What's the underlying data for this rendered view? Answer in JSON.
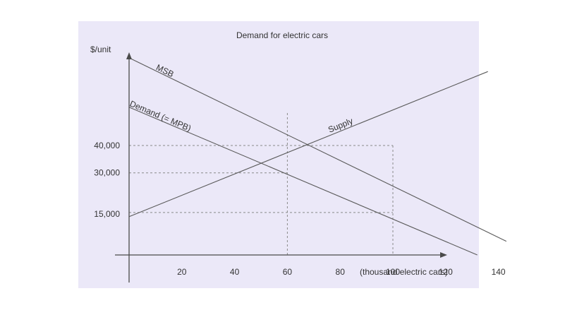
{
  "colors": {
    "panel_bg": "#ebe8f8",
    "line": "#5a5a5a",
    "axis": "#4a4a4a",
    "dashed": "#8a8a8a"
  },
  "chart_data": {
    "type": "line",
    "title": "Demand for electric cars",
    "ylabel": "$/unit",
    "xlabel": "(thousand electric cars)",
    "x_ticks": [
      20,
      40,
      60,
      80,
      100,
      120,
      140
    ],
    "y_ticks": [
      {
        "value": 15000,
        "label": "15,000"
      },
      {
        "value": 30000,
        "label": "30,000"
      },
      {
        "value": 40000,
        "label": "40,000"
      }
    ],
    "xlim": [
      0,
      160
    ],
    "ylim": [
      0,
      75000
    ],
    "series": [
      {
        "name": "MSB",
        "points": [
          [
            0,
            72000
          ],
          [
            143,
            5000
          ]
        ]
      },
      {
        "name": "Demand (= MPB)",
        "points": [
          [
            0,
            54000
          ],
          [
            132,
            0
          ]
        ]
      },
      {
        "name": "Supply",
        "points": [
          [
            0,
            14000
          ],
          [
            136,
            67000
          ]
        ]
      }
    ],
    "guides": [
      {
        "x": 60,
        "y": 30000
      },
      {
        "x": 100,
        "y": 40000
      },
      {
        "x": 100,
        "y": 15500
      }
    ]
  }
}
